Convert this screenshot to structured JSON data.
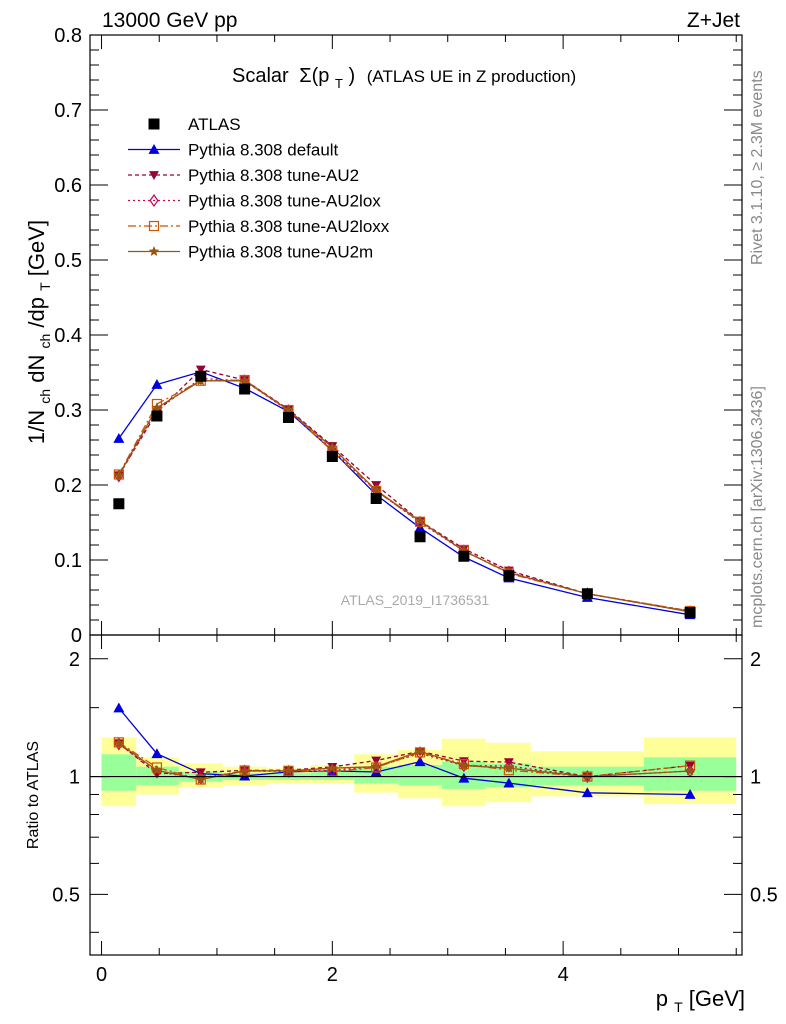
{
  "header": {
    "energy_label": "13000 GeV pp",
    "process_label": "Z+Jet",
    "plot_title_main": "Scalar",
    "plot_title_symbol": "Σ(p",
    "plot_title_sub": "T",
    "plot_title_close": ")",
    "plot_title_extra": "(ATLAS UE in Z production)",
    "analysis_id": "ATLAS_2019_I1736531"
  },
  "side_labels": {
    "rivet": "Rivet 3.1.10, ≥ 2.3M events",
    "mcplots": "mcplots.cern.ch [arXiv:1306.3436]"
  },
  "axes": {
    "y_main": {
      "p1": "1/N",
      "s1": "ch",
      "p2": " dN",
      "s2": "ch",
      "p3": "/dp",
      "s3": "T",
      "p4": " [GeV]"
    },
    "y_ratio": "Ratio to ATLAS",
    "x": {
      "p1": "p",
      "s1": "T",
      "p2": " [GeV]"
    }
  },
  "chart_data": {
    "type": "line",
    "x_range": [
      -0.1,
      5.55
    ],
    "main": {
      "ylim": [
        0,
        0.8
      ],
      "yticks": [
        0,
        0.1,
        0.2,
        0.3,
        0.4,
        0.5,
        0.6,
        0.7,
        0.8
      ],
      "ytick_labels": [
        "0",
        "0.1",
        "0.2",
        "0.3",
        "0.4",
        "0.5",
        "0.6",
        "0.7",
        "0.8"
      ]
    },
    "ratio": {
      "ylim": [
        0.35,
        2.3
      ],
      "log": true,
      "yticks": [
        0.5,
        1,
        2
      ],
      "ytick_labels": [
        "0.5",
        "1",
        "2"
      ]
    },
    "xticks": [
      0,
      2,
      4
    ],
    "xtick_labels": [
      "0",
      "2",
      "4"
    ],
    "x": [
      0.15,
      0.48,
      0.86,
      1.24,
      1.62,
      2.0,
      2.38,
      2.76,
      3.14,
      3.53,
      4.21,
      5.1
    ],
    "bins": [
      [
        0.0,
        0.3
      ],
      [
        0.3,
        0.67
      ],
      [
        0.67,
        1.05
      ],
      [
        1.05,
        1.43
      ],
      [
        1.43,
        1.81
      ],
      [
        1.81,
        2.19
      ],
      [
        2.19,
        2.57
      ],
      [
        2.57,
        2.95
      ],
      [
        2.95,
        3.33
      ],
      [
        3.33,
        3.72
      ],
      [
        3.72,
        4.7
      ],
      [
        4.7,
        5.5
      ]
    ],
    "data": {
      "name": "ATLAS",
      "values": [
        0.175,
        0.292,
        0.345,
        0.328,
        0.29,
        0.238,
        0.182,
        0.131,
        0.105,
        0.079,
        0.055,
        0.03
      ]
    },
    "series": [
      {
        "name": "Pythia 8.308 default",
        "color": "#0000dd",
        "marker": "triangle-up",
        "dash": "",
        "values": [
          0.262,
          0.334,
          0.351,
          0.329,
          0.298,
          0.246,
          0.187,
          0.143,
          0.104,
          0.076,
          0.05,
          0.027
        ]
      },
      {
        "name": "Pythia 8.308 tune-AU2",
        "color": "#990033",
        "marker": "triangle-down",
        "dash": "4,3",
        "values": [
          0.213,
          0.297,
          0.354,
          0.34,
          0.301,
          0.252,
          0.2,
          0.152,
          0.115,
          0.086,
          0.055,
          0.032
        ]
      },
      {
        "name": "Pythia 8.308 tune-AU2lox",
        "color": "#cc0055",
        "marker": "diamond-open",
        "dash": "2,3",
        "values": [
          0.212,
          0.3,
          0.342,
          0.339,
          0.299,
          0.247,
          0.193,
          0.15,
          0.112,
          0.084,
          0.055,
          0.031
        ]
      },
      {
        "name": "Pythia 8.308 tune-AU2loxx",
        "color": "#cc5500",
        "marker": "square-open",
        "dash": "8,3,2,3",
        "values": [
          0.214,
          0.308,
          0.339,
          0.34,
          0.3,
          0.245,
          0.192,
          0.151,
          0.113,
          0.082,
          0.055,
          0.032
        ]
      },
      {
        "name": "Pythia 8.308 tune-AU2m",
        "color": "#995511",
        "marker": "star",
        "dash": "",
        "values": [
          0.213,
          0.303,
          0.339,
          0.339,
          0.3,
          0.25,
          0.193,
          0.152,
          0.112,
          0.083,
          0.055,
          0.031
        ]
      }
    ],
    "bands": {
      "green": [
        [
          0.92,
          1.14
        ],
        [
          0.95,
          1.06
        ],
        [
          0.97,
          1.03
        ],
        [
          0.98,
          1.02
        ],
        [
          0.98,
          1.02
        ],
        [
          0.98,
          1.03
        ],
        [
          0.96,
          1.06
        ],
        [
          0.95,
          1.07
        ],
        [
          0.93,
          1.09
        ],
        [
          0.94,
          1.08
        ],
        [
          0.95,
          1.06
        ],
        [
          0.92,
          1.12
        ]
      ],
      "yellow": [
        [
          0.84,
          1.26
        ],
        [
          0.9,
          1.12
        ],
        [
          0.94,
          1.08
        ],
        [
          0.95,
          1.06
        ],
        [
          0.96,
          1.05
        ],
        [
          0.96,
          1.07
        ],
        [
          0.91,
          1.14
        ],
        [
          0.88,
          1.17
        ],
        [
          0.84,
          1.25
        ],
        [
          0.86,
          1.22
        ],
        [
          0.89,
          1.16
        ],
        [
          0.85,
          1.26
        ]
      ],
      "green_color": "#99ff99",
      "yellow_color": "#ffff99"
    },
    "legend_position": "top-left"
  }
}
